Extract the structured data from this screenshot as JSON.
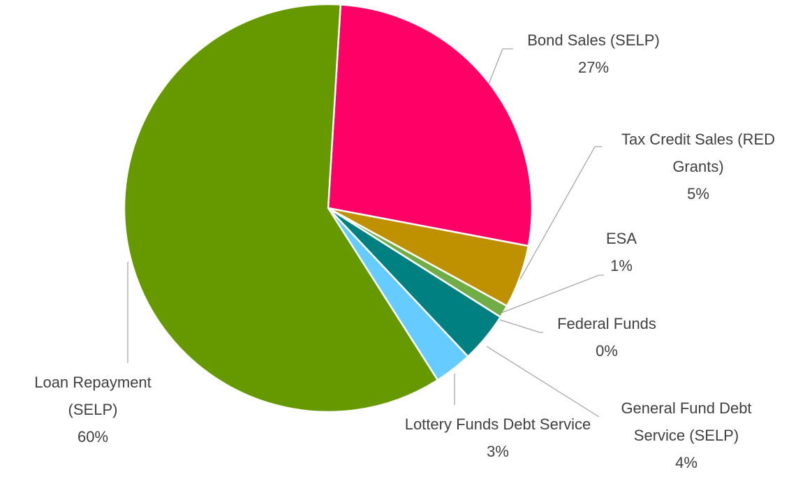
{
  "chart_data": {
    "type": "pie",
    "categories": [
      "Bond Sales (SELP)",
      "Tax Credit Sales (RED Grants)",
      "ESA",
      "Federal Funds",
      "General Fund Debt Service (SELP)",
      "Lottery Funds Debt Service",
      "Loan Repayment (SELP)"
    ],
    "values": [
      27,
      5,
      1,
      0,
      4,
      3,
      60
    ],
    "value_labels": [
      "27%",
      "5%",
      "1%",
      "0%",
      "4%",
      "3%",
      "60%"
    ],
    "colors": [
      "#ff0066",
      "#bf9000",
      "#70ad47",
      "#a5a5a5",
      "#008080",
      "#66ccff",
      "#669900"
    ]
  }
}
